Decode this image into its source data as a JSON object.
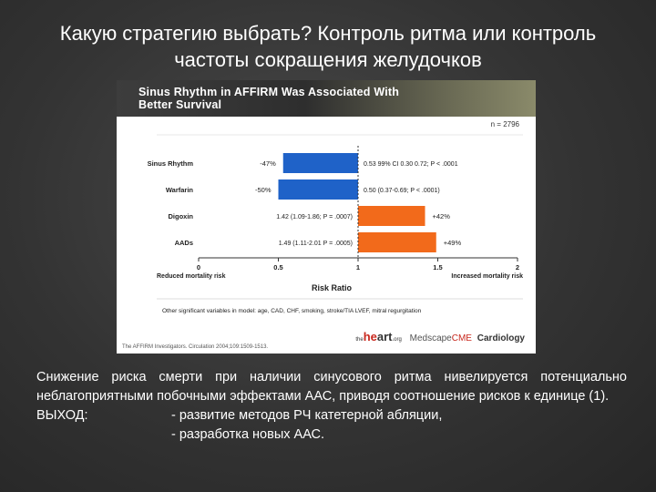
{
  "slide": {
    "title_line1": "Какую стратегию выбрать? Контроль ритма или контроль",
    "title_line2": "частоты сокращения желудочков"
  },
  "figure": {
    "title_line1": "Sinus Rhythm in AFFIRM Was Associated With",
    "title_line2": "Better Survival",
    "n_label": "n = 2796",
    "citation": "The AFFIRM Investigators. Circulation 2004;109:1509-1513.",
    "logo_heart_pre": "the",
    "logo_heart_main_a": "he",
    "logo_heart_main_b": "art",
    "logo_heart_suffix": ".org",
    "logo_medscape_a": "Medscape",
    "logo_medscape_b": "CME",
    "logo_cardiology": "Cardiology",
    "footnote": "Other significant variables in model: age, CAD, CHF, smoking, stroke/TIA LVEF, mitral regurgitation",
    "left_axis_caption": "Reduced mortality risk",
    "right_axis_caption": "Increased mortality risk",
    "colors": {
      "benefit": "#1f62c8",
      "harm": "#f26a1b"
    }
  },
  "chart_data": {
    "type": "bar",
    "xlabel": "Risk Ratio",
    "xlim": [
      0,
      2
    ],
    "xticks": [
      "0",
      "0.5",
      "1",
      "1.5",
      "2"
    ],
    "reference_line": 1,
    "categories": [
      "Sinus Rhythm",
      "Warfarin",
      "Digoxin",
      "AADs"
    ],
    "values": [
      0.53,
      0.5,
      1.42,
      1.49
    ],
    "change_labels": [
      "-47%",
      "-50%",
      "+42%",
      "+49%"
    ],
    "ci_labels": [
      "0.53 99% CI 0.30 0.72; P < .0001",
      "0.50 (0.37-0.69; P < .0001)",
      "1.42 (1.09-1.86; P = .0007)",
      "1.49 (1.11-2.01 P = .0005)"
    ]
  },
  "body": {
    "paragraph": "Снижение риска смерти при наличии синусового ритма нивелируется потенциально неблагоприятными побочными эффектами ААС, приводя соотношение рисков к единице (1).",
    "outcome_label": "ВЫХОД:",
    "outcome_item1": "- развитие методов РЧ катетерной абляции,",
    "outcome_item2": "- разработка новых ААС."
  }
}
